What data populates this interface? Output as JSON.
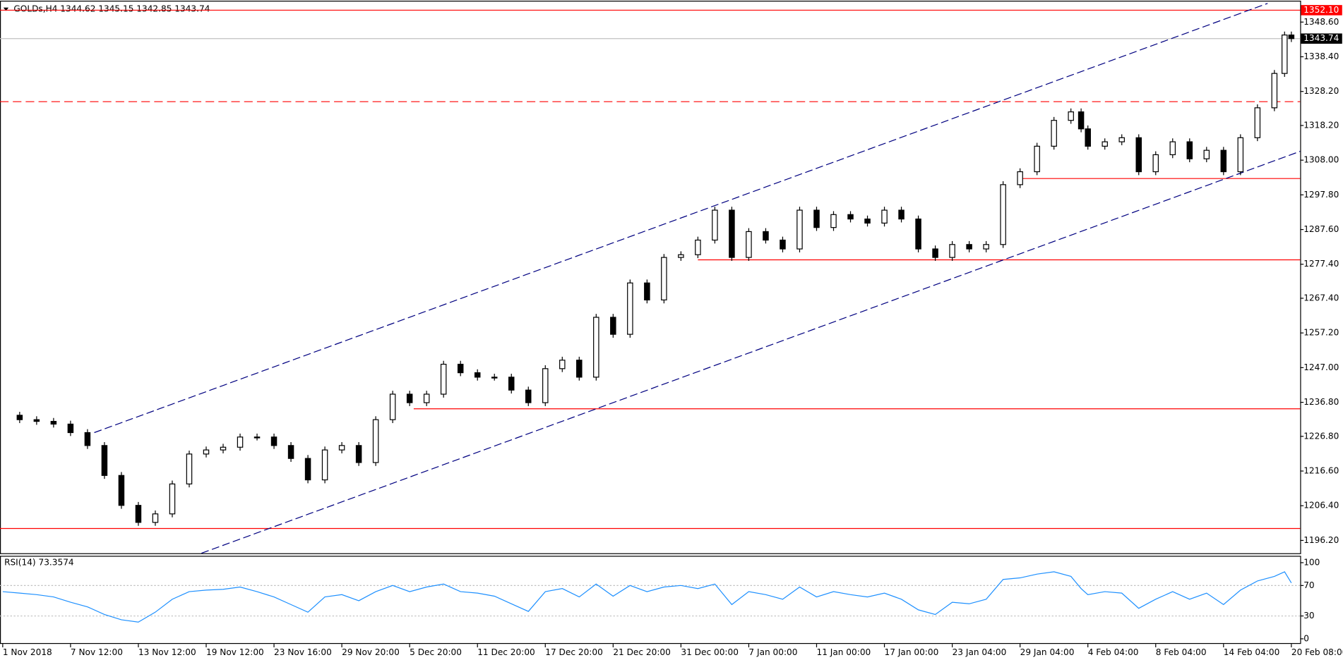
{
  "chart_data": [
    {
      "type": "candlestick",
      "title": "GOLDs,H4  1344.62 1345.15 1342.85 1343.74",
      "color": "#000000",
      "x": [
        0,
        0.25,
        0.5,
        0.75,
        1,
        1.25,
        1.5,
        1.75,
        2,
        2.25,
        2.5,
        2.75,
        3,
        3.25,
        3.5,
        3.75,
        4,
        4.25,
        4.5,
        4.75,
        5,
        5.25,
        5.5,
        5.75,
        6,
        6.25,
        6.5,
        6.75,
        7,
        7.25,
        7.5,
        7.75,
        8,
        8.25,
        8.5,
        8.75,
        9,
        9.25,
        9.5,
        9.75,
        10,
        10.25,
        10.5,
        10.75,
        11,
        11.25,
        11.5,
        11.75,
        12,
        12.25,
        12.5,
        12.75,
        13,
        13.25,
        13.5,
        13.75,
        14,
        14.25,
        14.5,
        14.75,
        15,
        15.25,
        15.5,
        15.75,
        15.9,
        16,
        16.25,
        16.5,
        16.75,
        17,
        17.25,
        17.5,
        17.75,
        18,
        18.25,
        18.5,
        18.75,
        18.9,
        19
      ],
      "values": [
        1233,
        1231.7,
        1231.2,
        1230.4,
        1227.9,
        1224.1,
        1215.3,
        1206.5,
        1201.5,
        1204,
        1212.8,
        1221.6,
        1222.8,
        1223.6,
        1226.6,
        1226.6,
        1224.1,
        1220.3,
        1214,
        1222.8,
        1224.1,
        1219.1,
        1231.7,
        1239.2,
        1236.7,
        1239.2,
        1248,
        1245.5,
        1244.2,
        1244.2,
        1240.4,
        1236.7,
        1246.7,
        1249.2,
        1244.2,
        1261.8,
        1256.8,
        1271.9,
        1266.9,
        1279.4,
        1280.2,
        1284.5,
        1293.3,
        1279.4,
        1287,
        1284.5,
        1281.9,
        1293.3,
        1288.2,
        1292,
        1290.7,
        1289.5,
        1293.3,
        1290.7,
        1281.9,
        1279.4,
        1283.2,
        1281.9,
        1283.2,
        1300.8,
        1304.6,
        1312.1,
        1319.7,
        1322.2,
        1317.2,
        1312.1,
        1313.4,
        1314.6,
        1304.6,
        1309.6,
        1313.4,
        1308.4,
        1310.9,
        1304.6,
        1314.6,
        1323.4,
        1333.5,
        1344.8,
        1343.74
      ],
      "xlim": [
        -0.04,
        19.13
      ],
      "ylim": [
        1192.43,
        1354.13
      ],
      "xticks": [
        {
          "value": 0,
          "label": "1 Nov 2018"
        },
        {
          "value": 1,
          "label": "7 Nov 12:00"
        },
        {
          "value": 2,
          "label": "13 Nov 12:00"
        },
        {
          "value": 3,
          "label": "19 Nov 12:00"
        },
        {
          "value": 4,
          "label": "23 Nov 16:00"
        },
        {
          "value": 5,
          "label": "29 Nov 20:00"
        },
        {
          "value": 6,
          "label": "5 Dec 20:00"
        },
        {
          "value": 7,
          "label": "11 Dec 20:00"
        },
        {
          "value": 8,
          "label": "17 Dec 20:00"
        },
        {
          "value": 9,
          "label": "21 Dec 20:00"
        },
        {
          "value": 10,
          "label": "31 Dec 00:00"
        },
        {
          "value": 11,
          "label": "7 Jan 00:00"
        },
        {
          "value": 12,
          "label": "11 Jan 00:00"
        },
        {
          "value": 13,
          "label": "17 Jan 00:00"
        },
        {
          "value": 14,
          "label": "23 Jan 04:00"
        },
        {
          "value": 15,
          "label": "29 Jan 04:00"
        },
        {
          "value": 16,
          "label": "4 Feb 04:00"
        },
        {
          "value": 17,
          "label": "8 Feb 04:00"
        },
        {
          "value": 18,
          "label": "14 Feb 04:00"
        },
        {
          "value": 19,
          "label": "20 Feb 08:00"
        }
      ],
      "yticks": [
        {
          "value": 1348.6,
          "label": "1348.60"
        },
        {
          "value": 1338.4,
          "label": "1338.40"
        },
        {
          "value": 1328.2,
          "label": "1328.20"
        },
        {
          "value": 1318.2,
          "label": "1318.20"
        },
        {
          "value": 1308,
          "label": "1308.00"
        },
        {
          "value": 1297.8,
          "label": "1297.80"
        },
        {
          "value": 1287.6,
          "label": "1287.60"
        },
        {
          "value": 1277.4,
          "label": "1277.40"
        },
        {
          "value": 1267.4,
          "label": "1267.40"
        },
        {
          "value": 1257.2,
          "label": "1257.20"
        },
        {
          "value": 1247,
          "label": "1247.00"
        },
        {
          "value": 1236.8,
          "label": "1236.80"
        },
        {
          "value": 1226.8,
          "label": "1226.80"
        },
        {
          "value": 1216.6,
          "label": "1216.60"
        },
        {
          "value": 1206.4,
          "label": "1206.40"
        },
        {
          "value": 1196.2,
          "label": "1196.20"
        }
      ],
      "levels": [
        {
          "value": 1352.1,
          "x_start": -0.04,
          "color": "#ff0000",
          "dashed": false
        },
        {
          "value": 1343.74,
          "x_start": -0.04,
          "color": "#c0c0c0",
          "dashed": false
        },
        {
          "value": 1325.2,
          "x_start": -0.04,
          "color": "#ff0000",
          "dashed": true
        },
        {
          "value": 1302.6,
          "x_start": 15,
          "color": "#ff0000",
          "dashed": false
        },
        {
          "value": 1278.7,
          "x_start": 10.25,
          "color": "#ff0000",
          "dashed": false
        },
        {
          "value": 1234.9,
          "x_start": 6.06,
          "color": "#ff0000",
          "dashed": false
        },
        {
          "value": 1199.7,
          "x_start": -0.04,
          "color": "#ff0000",
          "dashed": false
        }
      ],
      "trendlines": [
        {
          "x": [
            1.35,
            18.65
          ],
          "y": [
            1227.9,
            1354.1
          ],
          "color": "#000080"
        },
        {
          "x": [
            2.93,
            19.13
          ],
          "y": [
            1192.43,
            1310.6
          ],
          "color": "#000080"
        }
      ],
      "price_tags": [
        {
          "value": 1352.1,
          "label": "1352.10",
          "color": "#ff0000"
        },
        {
          "value": 1343.74,
          "label": "1343.74",
          "color": "#000000"
        }
      ]
    },
    {
      "type": "line",
      "title": "RSI(14) 73.3574",
      "color": "#1e90ff",
      "x": [
        0,
        0.25,
        0.5,
        0.75,
        1,
        1.25,
        1.5,
        1.75,
        2,
        2.25,
        2.5,
        2.75,
        3,
        3.25,
        3.5,
        3.75,
        4,
        4.25,
        4.5,
        4.75,
        5,
        5.25,
        5.5,
        5.75,
        6,
        6.25,
        6.5,
        6.75,
        7,
        7.25,
        7.5,
        7.75,
        8,
        8.25,
        8.5,
        8.75,
        9,
        9.25,
        9.5,
        9.75,
        10,
        10.25,
        10.5,
        10.75,
        11,
        11.25,
        11.5,
        11.75,
        12,
        12.25,
        12.5,
        12.75,
        13,
        13.25,
        13.5,
        13.75,
        14,
        14.25,
        14.5,
        14.75,
        15,
        15.25,
        15.5,
        15.75,
        15.9,
        16,
        16.25,
        16.5,
        16.75,
        17,
        17.25,
        17.5,
        17.75,
        18,
        18.25,
        18.5,
        18.75,
        18.9,
        19
      ],
      "values": [
        62,
        60,
        58,
        55,
        48,
        42,
        32,
        25,
        22,
        35,
        52,
        62,
        64,
        65,
        68,
        62,
        55,
        45,
        35,
        55,
        58,
        50,
        62,
        70,
        62,
        68,
        72,
        62,
        60,
        56,
        46,
        36,
        62,
        66,
        55,
        72,
        56,
        70,
        62,
        68,
        70,
        66,
        72,
        45,
        62,
        58,
        52,
        68,
        55,
        62,
        58,
        55,
        60,
        52,
        38,
        32,
        48,
        46,
        52,
        78,
        80,
        85,
        88,
        82,
        66,
        58,
        62,
        60,
        40,
        52,
        62,
        52,
        60,
        45,
        64,
        76,
        82,
        88,
        73.3574
      ],
      "xlim": [
        -0.04,
        19.13
      ],
      "ylim": [
        -6.7,
        107.9
      ],
      "yticks": [
        100,
        70,
        30,
        0
      ],
      "levels": [
        70,
        30
      ]
    }
  ]
}
